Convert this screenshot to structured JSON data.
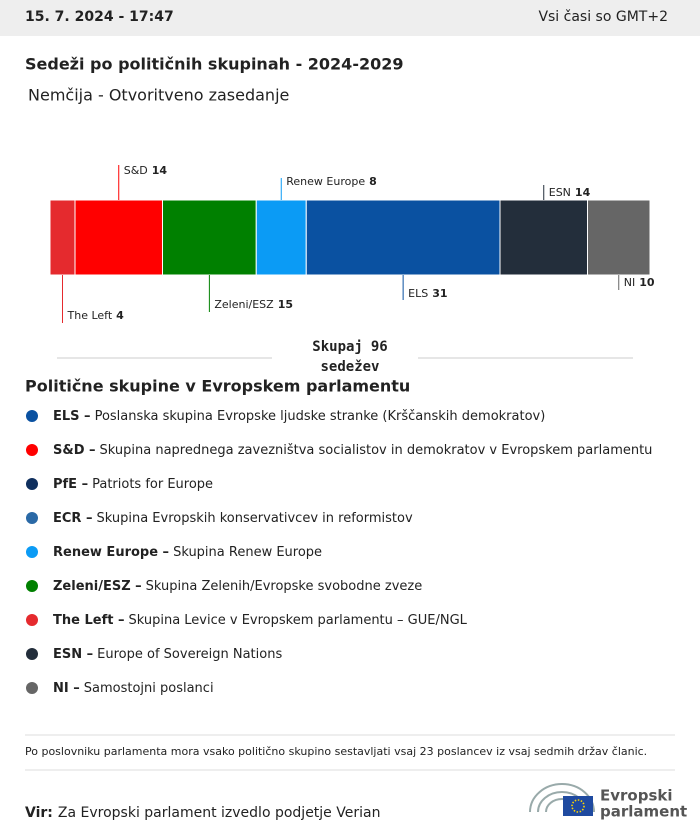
{
  "header": {
    "date": "15. 7. 2024 - 17:47",
    "timezone": "Vsi časi so GMT+2"
  },
  "chart_data": {
    "type": "stacked-bar",
    "title": "Sedeži po političnih skupinah - 2024-2029",
    "subtitle": "Nemčija - Otvoritveno zasedanje",
    "categories": [
      "The Left",
      "S&D",
      "Zeleni/ESZ",
      "Renew Europe",
      "ELS",
      "ESN",
      "NI"
    ],
    "values": [
      4,
      14,
      15,
      8,
      31,
      14,
      10
    ],
    "colors": [
      "#e52a2e",
      "#ff0000",
      "#008000",
      "#0b9bf5",
      "#0a51a1",
      "#232e3b",
      "#666666"
    ],
    "total": {
      "before": "Skupaj",
      "value": 96,
      "after": "sedežev"
    }
  },
  "legend": {
    "title": "Politične skupine v Evropskem parlamentu",
    "items": [
      {
        "abbr": "ELS –",
        "description": "Poslanska skupina Evropske ljudske stranke (Krščanskih demokratov)",
        "color": "#0a51a1"
      },
      {
        "abbr": "S&D –",
        "description": "Skupina naprednega zavezništva socialistov in demokratov v Evropskem parlamentu",
        "color": "#ff0000"
      },
      {
        "abbr": "PfE –",
        "description": "Patriots for Europe",
        "color": "#0f2f5e"
      },
      {
        "abbr": "ECR –",
        "description": "Skupina Evropskih konservativcev in reformistov",
        "color": "#2a69a6"
      },
      {
        "abbr": "Renew Europe –",
        "description": "Skupina Renew Europe",
        "color": "#0b9bf5"
      },
      {
        "abbr": "Zeleni/ESZ –",
        "description": "Skupina Zelenih/Evropske svobodne zveze",
        "color": "#008000"
      },
      {
        "abbr": "The Left –",
        "description": "Skupina Levice v Evropskem parlamentu – GUE/NGL",
        "color": "#e52a2e"
      },
      {
        "abbr": "ESN –",
        "description": "Europe of Sovereign Nations",
        "color": "#232e3b"
      },
      {
        "abbr": "NI –",
        "description": "Samostojni poslanci",
        "color": "#666666"
      }
    ]
  },
  "footnote": "Po poslovniku parlamenta mora vsako politično skupino sestavljati vsaj 23 poslancev iz vsaj sedmih držav članic.",
  "source": {
    "label": "Vir:",
    "text": "Za Evropski parlament izvedlo podjetje Verian"
  },
  "logo": [
    "Evropski",
    "parlament"
  ]
}
